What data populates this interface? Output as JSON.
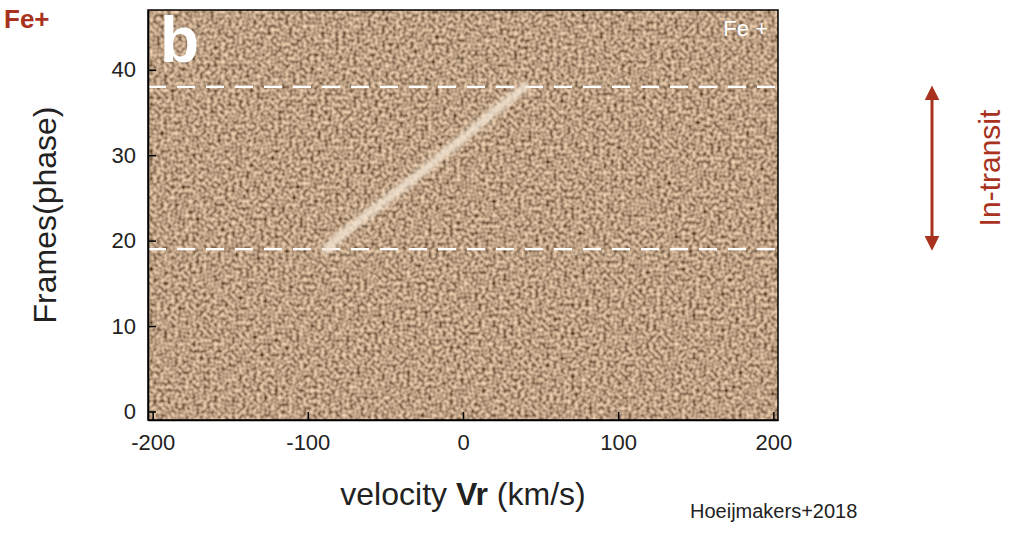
{
  "chart_data": {
    "type": "line",
    "title": "Fe+",
    "panel": "b",
    "x_label": [
      "velocity ",
      "Vr",
      " (km/s)"
    ],
    "y_label": "Frames(phase)",
    "source": "Hoeijmakers+2018",
    "xlim": [
      -203,
      203
    ],
    "xticks": [
      -200,
      -100,
      0,
      100,
      200
    ],
    "ylim": [
      -1,
      47
    ],
    "yticks": [
      0,
      10,
      20,
      30,
      40
    ],
    "legend": "upper right",
    "series": [
      {
        "name": "Fe +",
        "color": "#f3e4d2",
        "x": [
          -88,
          -82,
          -76,
          -69,
          -62,
          -55,
          -48,
          -41,
          -34,
          -27,
          -20,
          -14,
          -7,
          0,
          6,
          13,
          19,
          26,
          33,
          40
        ],
        "values": [
          19,
          20,
          21,
          22,
          23,
          24,
          25,
          26,
          27,
          28,
          29,
          30,
          31,
          32,
          33,
          34,
          35,
          36,
          37,
          38
        ]
      }
    ],
    "annotations": [
      {
        "text": "In-transit",
        "y": [
          19,
          38
        ]
      }
    ]
  }
}
